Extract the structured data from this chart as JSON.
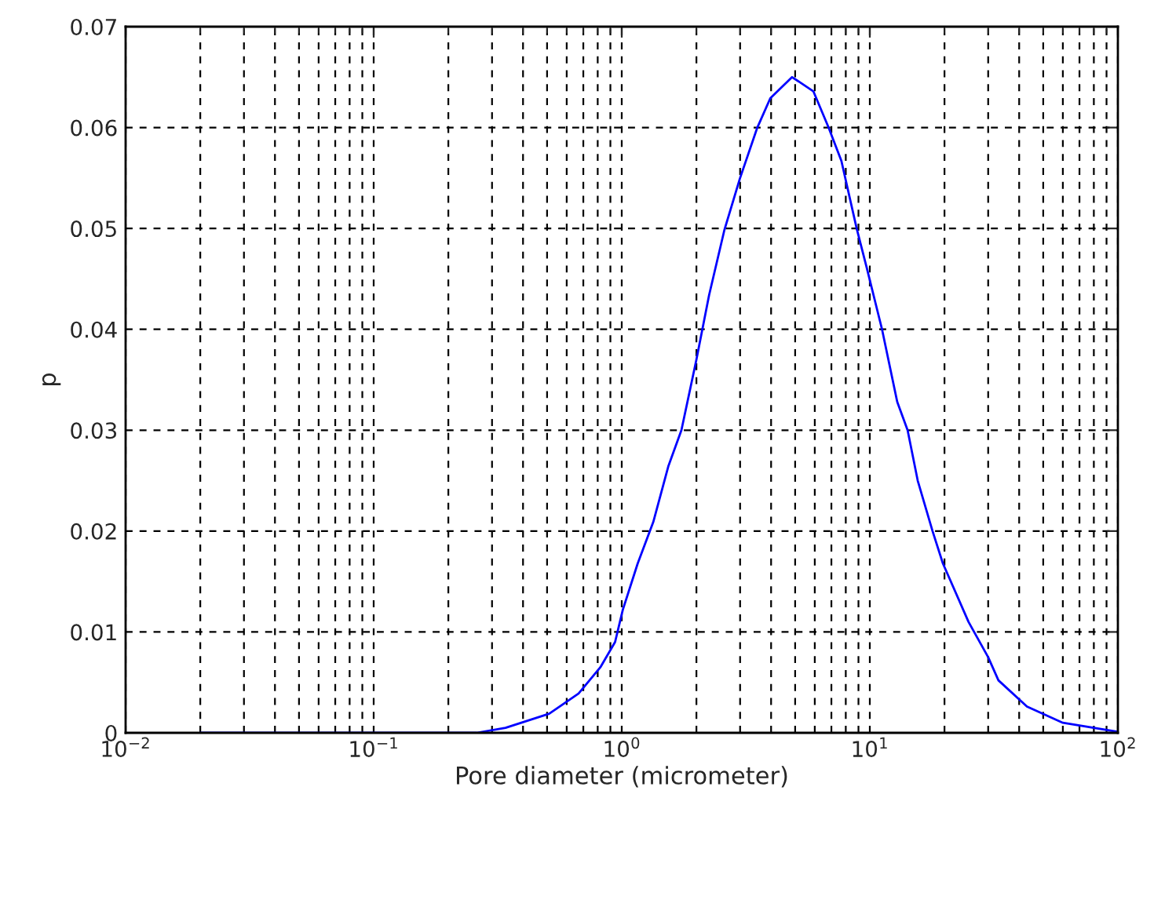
{
  "chart_data": {
    "type": "line",
    "xlabel": "Pore diameter (micrometer)",
    "ylabel": "p",
    "log": "x",
    "grid": true,
    "marker": "none",
    "line_style": "solid",
    "xlim": [
      0.01,
      100
    ],
    "ylim": [
      0,
      0.07
    ],
    "xticks": [
      {
        "value": 0.01,
        "label": "10$^{−2}$"
      },
      {
        "value": 0.1,
        "label": "10$^{−1}$"
      },
      {
        "value": 1,
        "label": "10$^{0}$"
      },
      {
        "value": 10,
        "label": "10$^{1}$"
      },
      {
        "value": 100,
        "label": "10$^{2}$"
      }
    ],
    "yticks": [
      0,
      0.01,
      0.02,
      0.03,
      0.04,
      0.05,
      0.06,
      0.07
    ],
    "series": [
      {
        "color": "#0000ff",
        "x": [
          0.02,
          0.26,
          0.34,
          0.51,
          0.67,
          0.82,
          0.94,
          1.01,
          1.16,
          1.34,
          1.54,
          1.74,
          2.0,
          2.25,
          2.59,
          2.99,
          3.52,
          3.97,
          4.86,
          5.92,
          6.82,
          7.68,
          8.85,
          9.72,
          11.2,
          12.9,
          14.2,
          15.6,
          17.9,
          19.7,
          25,
          30,
          33,
          43,
          60,
          100
        ],
        "values": [
          0,
          0,
          0.0005,
          0.0019,
          0.0039,
          0.0065,
          0.009,
          0.0122,
          0.0168,
          0.0209,
          0.0264,
          0.03,
          0.037,
          0.0434,
          0.0498,
          0.0549,
          0.06,
          0.0629,
          0.065,
          0.0636,
          0.06,
          0.0567,
          0.05,
          0.0461,
          0.04,
          0.0328,
          0.03,
          0.025,
          0.02,
          0.0168,
          0.011,
          0.0075,
          0.0052,
          0.0026,
          0.001,
          0.0001
        ]
      }
    ]
  }
}
